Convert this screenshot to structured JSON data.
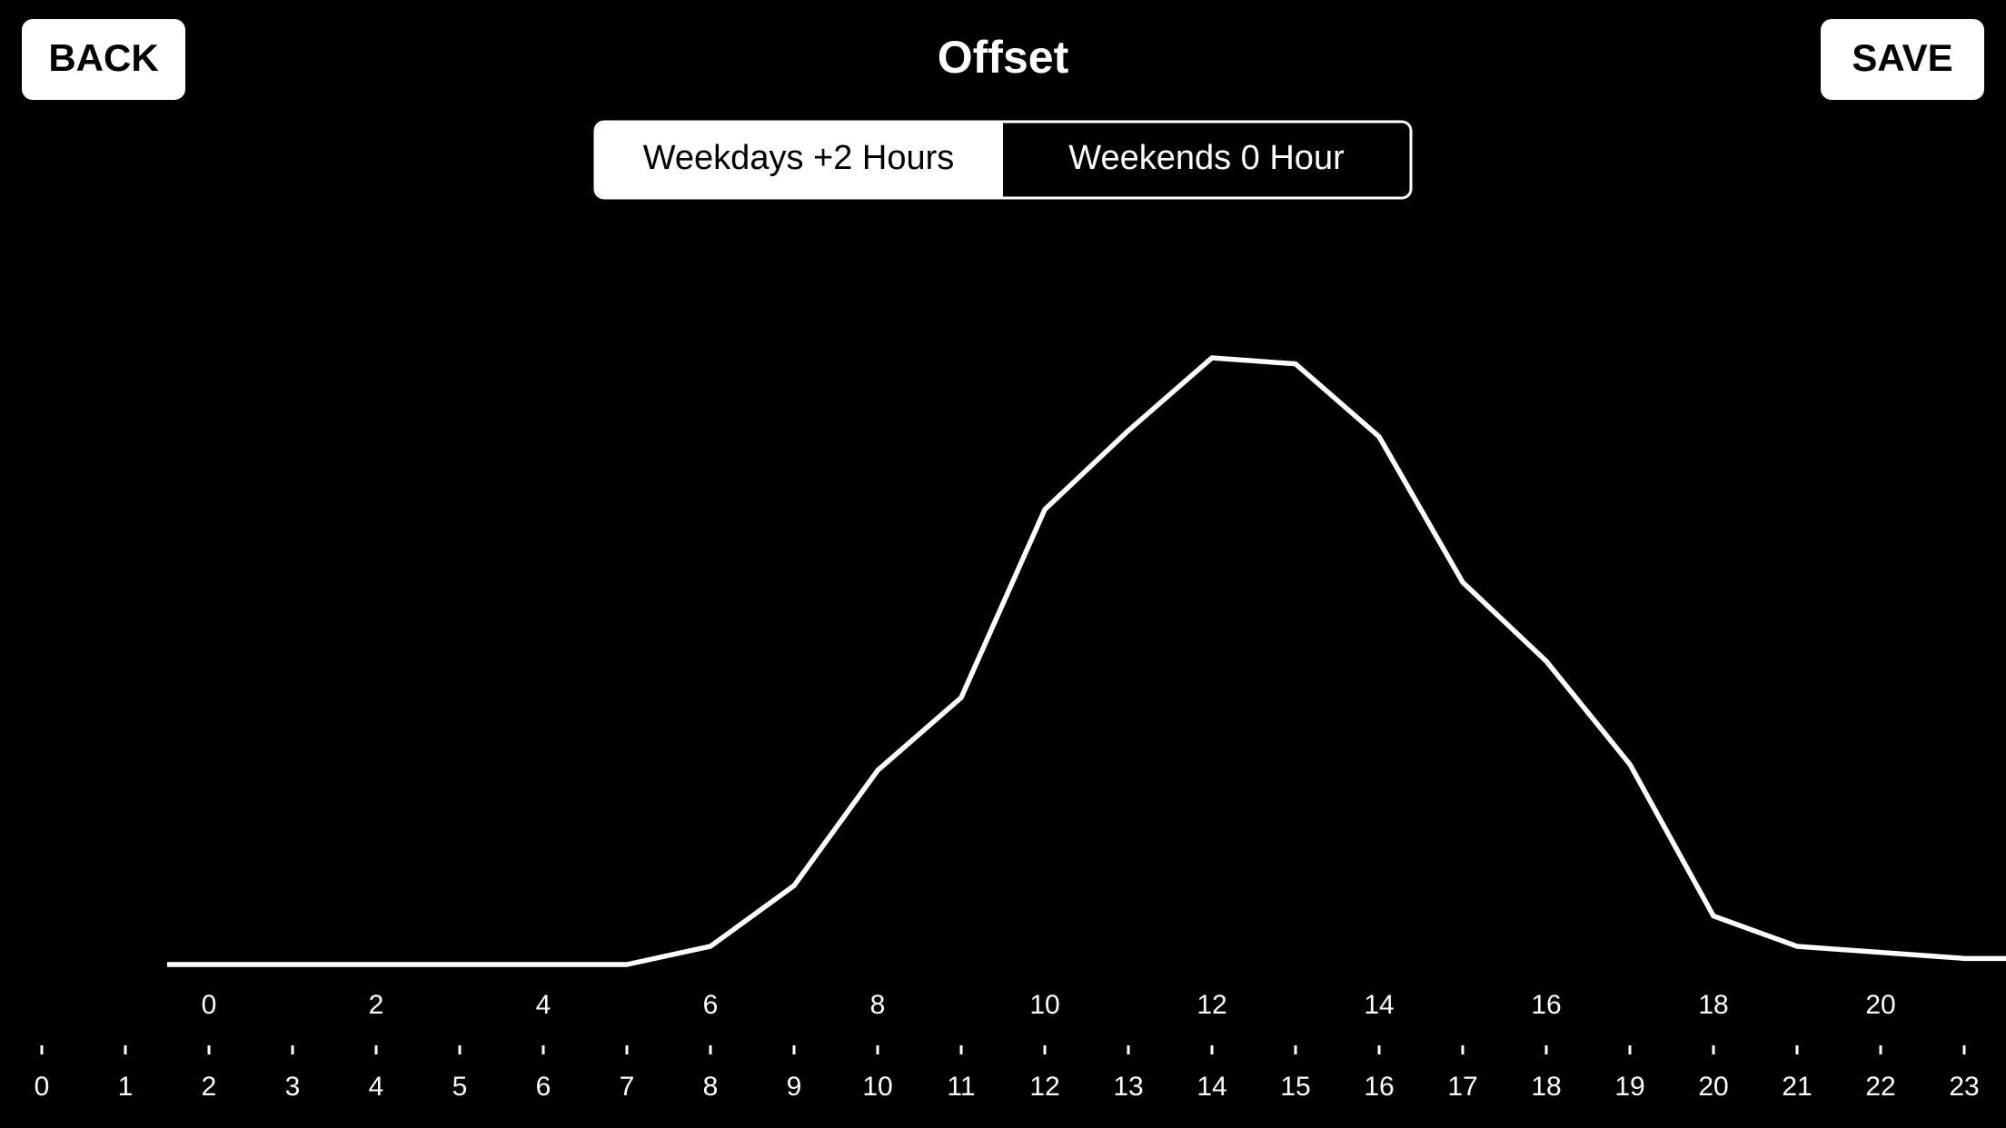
{
  "header": {
    "back": "BACK",
    "title": "Offset",
    "save": "SAVE"
  },
  "segments": [
    "Weekdays +2 Hours",
    "Weekends 0 Hour"
  ],
  "chart_data": {
    "type": "line",
    "x": [
      1.5,
      2,
      3,
      4,
      5,
      6,
      7,
      8,
      9,
      10,
      11,
      12,
      13,
      14,
      15,
      16,
      17,
      18,
      19,
      20,
      21,
      22,
      23,
      23.5
    ],
    "series": [
      {
        "color": "#ffffff",
        "values": [
          0,
          0,
          0,
          0,
          0,
          0,
          0,
          3,
          13,
          32,
          44,
          75,
          88,
          100,
          99,
          87,
          63,
          50,
          33,
          8,
          3,
          2,
          1,
          1
        ]
      }
    ],
    "xlim": [
      -0.5,
      23.5
    ],
    "ylim": [
      0,
      100
    ],
    "xticks": [
      0,
      1,
      2,
      3,
      4,
      5,
      6,
      7,
      8,
      9,
      10,
      11,
      12,
      13,
      14,
      15,
      16,
      17,
      18,
      19,
      20,
      21,
      22,
      23
    ],
    "top_ticks": [
      {
        "value": 2,
        "label": "0"
      },
      {
        "value": 4,
        "label": "2"
      },
      {
        "value": 6,
        "label": "4"
      },
      {
        "value": 8,
        "label": "6"
      },
      {
        "value": 10,
        "label": "8"
      },
      {
        "value": 12,
        "label": "10"
      },
      {
        "value": 14,
        "label": "12"
      },
      {
        "value": 16,
        "label": "14"
      },
      {
        "value": 18,
        "label": "16"
      },
      {
        "value": 20,
        "label": "18"
      },
      {
        "value": 22,
        "label": "20"
      }
    ]
  }
}
